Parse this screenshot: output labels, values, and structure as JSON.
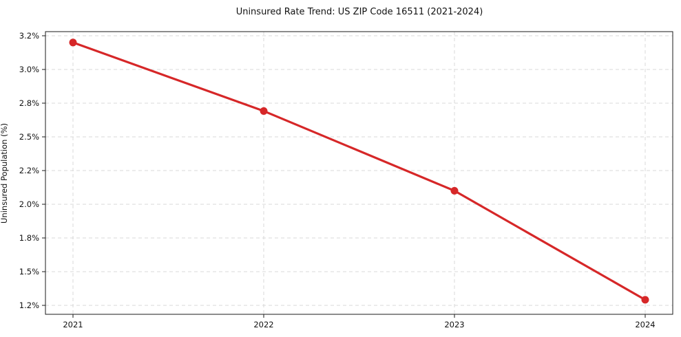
{
  "chart_data": {
    "type": "line",
    "title": "Uninsured Rate Trend: US ZIP Code 16511 (2021-2024)",
    "xlabel": "",
    "ylabel": "Uninsured Population (%)",
    "categories": [
      "2021",
      "2022",
      "2023",
      "2024"
    ],
    "series": [
      {
        "name": "Uninsured rate",
        "values": [
          3.16,
          2.73,
          2.08,
          1.25
        ]
      }
    ],
    "x_tick_labels": [
      "2021",
      "2022",
      "2023",
      "2024"
    ],
    "y_tick_labels": [
      "3.2%",
      "3.0%",
      "2.8%",
      "2.5%",
      "2.2%",
      "2.0%",
      "1.8%",
      "1.5%",
      "1.2%"
    ],
    "y_tick_values": [
      3.2,
      3.0,
      2.8,
      2.5,
      2.2,
      2.0,
      1.8,
      1.5,
      1.2
    ],
    "grid": {
      "visible": true,
      "style": "dashed"
    },
    "legend": {
      "visible": false
    },
    "marker": "circle",
    "colors": {
      "line": "#d62728",
      "marker": "#d62728",
      "grid": "#d8d8d8",
      "spine": "#1a1a1a",
      "text": "#111111",
      "background": "#ffffff"
    }
  }
}
